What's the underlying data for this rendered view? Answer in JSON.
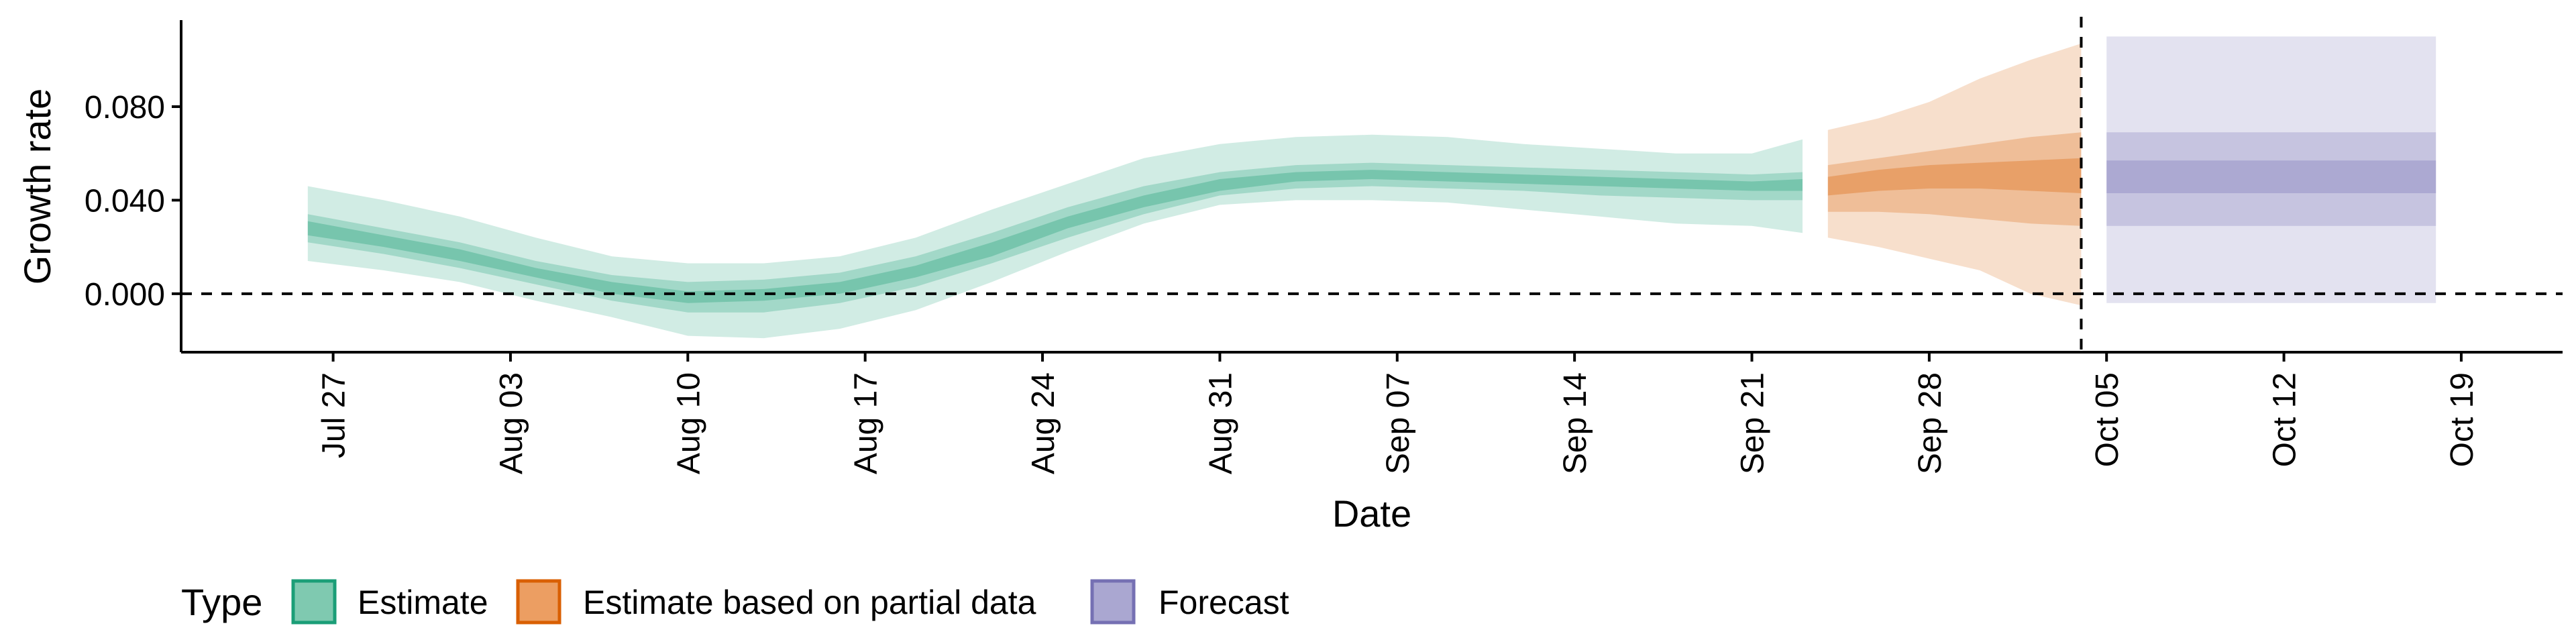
{
  "chart_data": {
    "type": "area",
    "xlabel": "Date",
    "ylabel": "Growth rate",
    "xlim": [
      "2021-07-21",
      "2021-10-23"
    ],
    "ylim": [
      -0.025,
      0.117
    ],
    "x_ticks": [
      "2021-07-27",
      "2021-08-03",
      "2021-08-10",
      "2021-08-17",
      "2021-08-24",
      "2021-08-31",
      "2021-09-07",
      "2021-09-14",
      "2021-09-21",
      "2021-09-28",
      "2021-10-05",
      "2021-10-12",
      "2021-10-19"
    ],
    "x_tick_labels": [
      "Jul 27",
      "Aug 03",
      "Aug 10",
      "Aug 17",
      "Aug 24",
      "Aug 31",
      "Sep 07",
      "Sep 14",
      "Sep 21",
      "Sep 28",
      "Oct 05",
      "Oct 12",
      "Oct 19"
    ],
    "y_ticks": [
      0.0,
      0.04,
      0.08
    ],
    "y_tick_labels": [
      "0.000",
      "0.040",
      "0.080"
    ],
    "hline": 0,
    "vline": "2021-10-04",
    "legend": {
      "title": "Type",
      "position": "bottom",
      "items": [
        {
          "label": "Estimate",
          "fill": "#7fc9b0",
          "border": "#1b9e77"
        },
        {
          "label": "Estimate based on partial data",
          "fill": "#ec9e62",
          "border": "#d95f02"
        },
        {
          "label": "Forecast",
          "fill": "#aaa7d1",
          "border": "#7570b3"
        }
      ]
    },
    "series": [
      {
        "name": "Estimate",
        "color": "#1b9e77",
        "x": [
          "2021-07-26",
          "2021-07-29",
          "2021-08-01",
          "2021-08-04",
          "2021-08-07",
          "2021-08-10",
          "2021-08-13",
          "2021-08-16",
          "2021-08-19",
          "2021-08-22",
          "2021-08-25",
          "2021-08-28",
          "2021-08-31",
          "2021-09-03",
          "2021-09-06",
          "2021-09-09",
          "2021-09-12",
          "2021-09-15",
          "2021-09-18",
          "2021-09-21",
          "2021-09-23"
        ],
        "lower90": [
          0.014,
          0.01,
          0.005,
          -0.003,
          -0.01,
          -0.018,
          -0.019,
          -0.015,
          -0.007,
          0.005,
          0.018,
          0.03,
          0.038,
          0.04,
          0.04,
          0.039,
          0.036,
          0.033,
          0.03,
          0.029,
          0.026
        ],
        "upper90": [
          0.046,
          0.04,
          0.033,
          0.024,
          0.016,
          0.013,
          0.013,
          0.016,
          0.024,
          0.036,
          0.047,
          0.058,
          0.064,
          0.067,
          0.068,
          0.067,
          0.064,
          0.062,
          0.06,
          0.06,
          0.066
        ],
        "lower50": [
          0.022,
          0.017,
          0.011,
          0.004,
          -0.003,
          -0.008,
          -0.008,
          -0.004,
          0.003,
          0.013,
          0.024,
          0.034,
          0.042,
          0.045,
          0.046,
          0.045,
          0.044,
          0.042,
          0.041,
          0.04,
          0.04
        ],
        "upper50": [
          0.034,
          0.028,
          0.022,
          0.014,
          0.008,
          0.005,
          0.006,
          0.009,
          0.016,
          0.026,
          0.037,
          0.046,
          0.052,
          0.055,
          0.056,
          0.055,
          0.054,
          0.053,
          0.052,
          0.051,
          0.052
        ],
        "lower20": [
          0.025,
          0.02,
          0.014,
          0.007,
          0.0,
          -0.004,
          -0.003,
          0.0,
          0.007,
          0.016,
          0.028,
          0.037,
          0.044,
          0.048,
          0.049,
          0.048,
          0.047,
          0.046,
          0.045,
          0.044,
          0.044
        ],
        "upper20": [
          0.031,
          0.025,
          0.019,
          0.011,
          0.005,
          0.001,
          0.002,
          0.005,
          0.012,
          0.022,
          0.033,
          0.042,
          0.049,
          0.052,
          0.053,
          0.052,
          0.051,
          0.05,
          0.049,
          0.048,
          0.049
        ]
      },
      {
        "name": "Estimate based on partial data",
        "color": "#d95f02",
        "x": [
          "2021-09-24",
          "2021-09-26",
          "2021-09-28",
          "2021-09-30",
          "2021-10-02",
          "2021-10-04"
        ],
        "lower90": [
          0.024,
          0.02,
          0.015,
          0.01,
          0.0,
          -0.005
        ],
        "upper90": [
          0.07,
          0.075,
          0.082,
          0.092,
          0.1,
          0.107
        ],
        "lower50": [
          0.035,
          0.035,
          0.034,
          0.032,
          0.03,
          0.029
        ],
        "upper50": [
          0.055,
          0.058,
          0.061,
          0.064,
          0.067,
          0.069
        ],
        "lower20": [
          0.042,
          0.044,
          0.045,
          0.045,
          0.044,
          0.043
        ],
        "upper20": [
          0.05,
          0.053,
          0.055,
          0.056,
          0.057,
          0.058
        ]
      },
      {
        "name": "Forecast",
        "color": "#7570b3",
        "x": [
          "2021-10-05",
          "2021-10-18"
        ],
        "lower90": [
          -0.004,
          -0.004
        ],
        "upper90": [
          0.11,
          0.11
        ],
        "lower50": [
          0.029,
          0.029
        ],
        "upper50": [
          0.069,
          0.069
        ],
        "lower20": [
          0.043,
          0.043
        ],
        "upper20": [
          0.057,
          0.057
        ]
      }
    ]
  }
}
